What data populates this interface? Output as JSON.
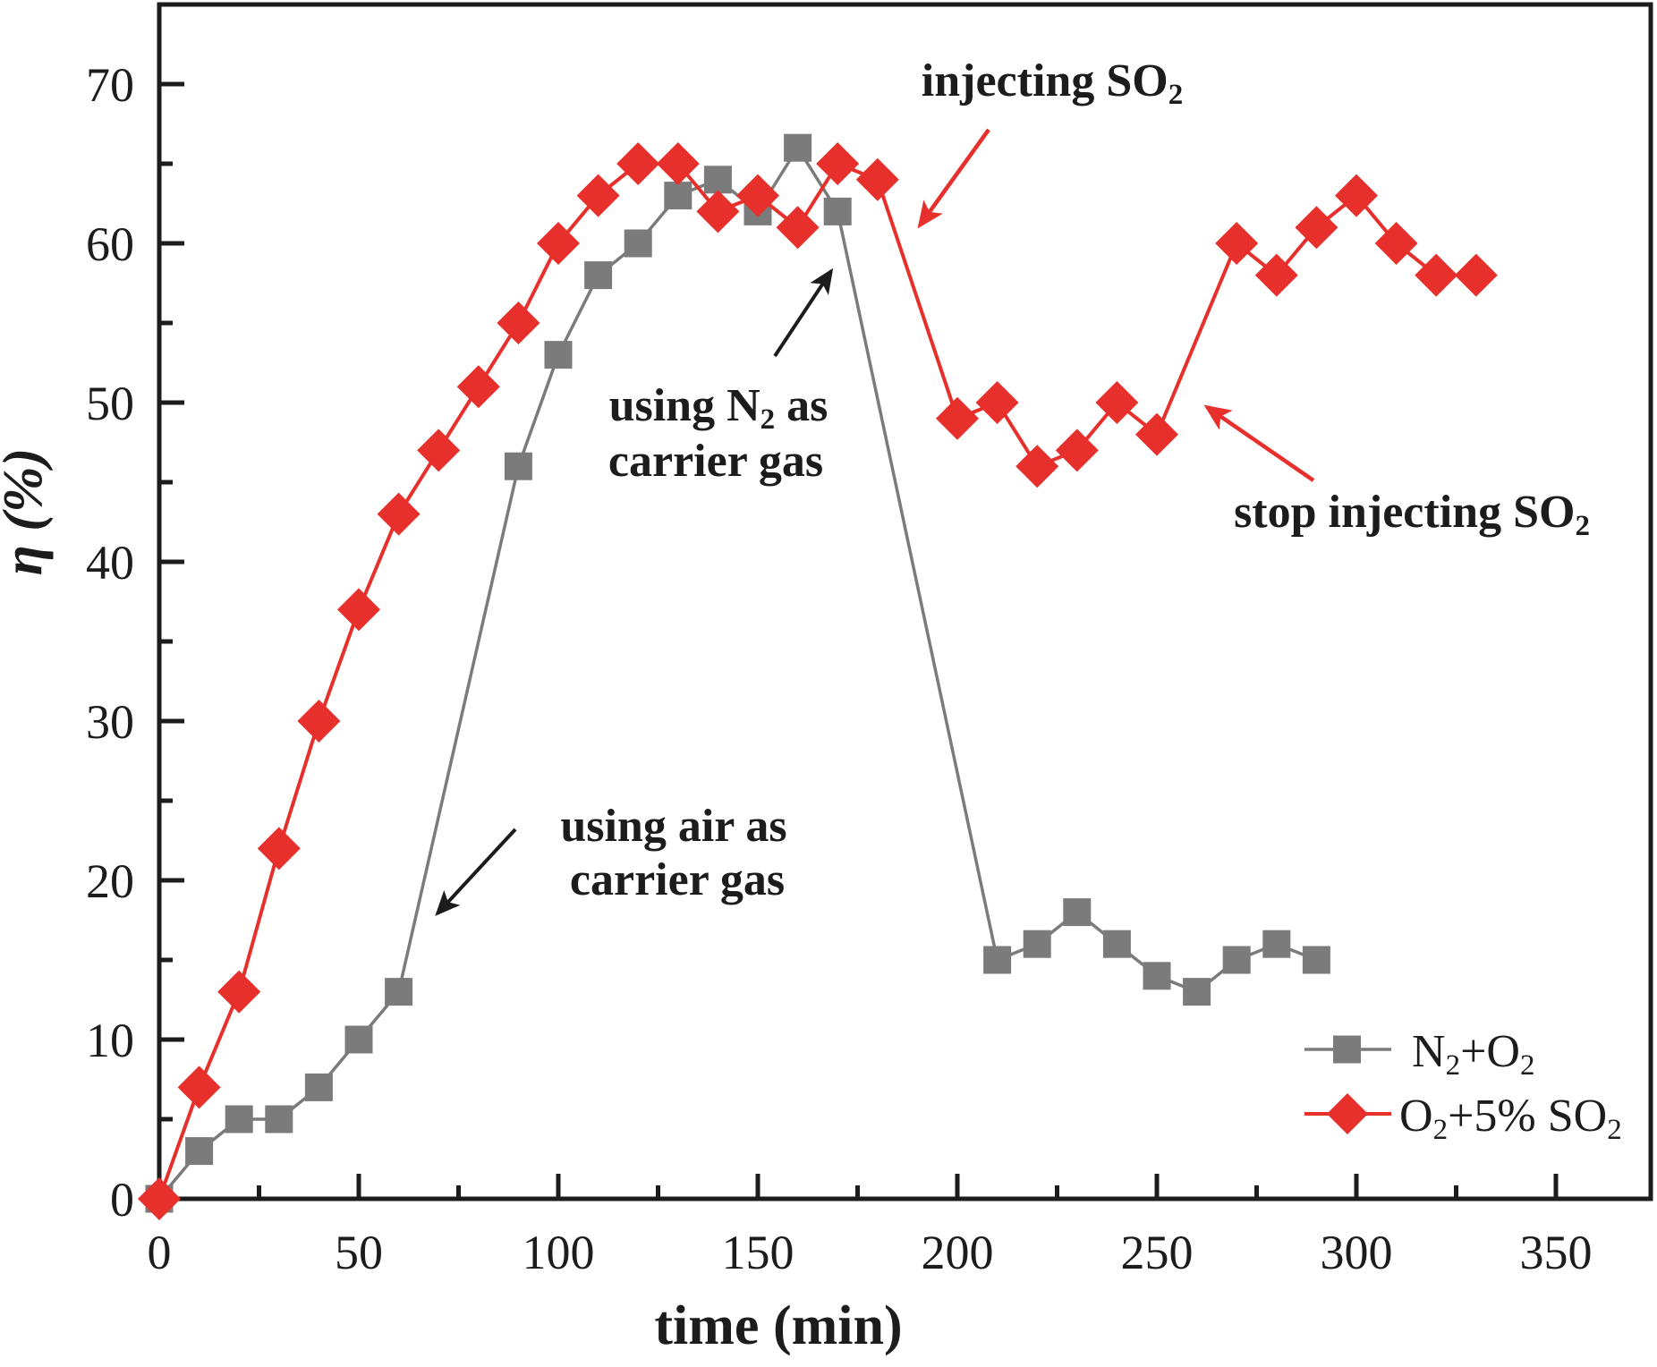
{
  "chart_data": {
    "type": "line",
    "title": "",
    "xlabel": "time (min)",
    "ylabel": "η (%)",
    "xlim": [
      0,
      373
    ],
    "ylim": [
      0,
      75
    ],
    "grid": false,
    "legend_position": "lower-right",
    "x_major_ticks": [
      0,
      50,
      100,
      150,
      200,
      250,
      300,
      350
    ],
    "x_minor_ticks": [
      25,
      75,
      125,
      175,
      225,
      275,
      325
    ],
    "y_major_ticks": [
      0,
      10,
      20,
      30,
      40,
      50,
      60,
      70
    ],
    "y_minor_ticks": [
      5,
      15,
      25,
      35,
      45,
      55,
      65
    ],
    "series": [
      {
        "name": "N₂+O₂",
        "marker": "square",
        "color": "#7b7b7b",
        "points": [
          [
            0,
            0
          ],
          [
            10,
            3
          ],
          [
            20,
            5
          ],
          [
            30,
            5
          ],
          [
            40,
            7
          ],
          [
            50,
            10
          ],
          [
            60,
            13
          ],
          [
            90,
            46
          ],
          [
            100,
            53
          ],
          [
            110,
            58
          ],
          [
            120,
            60
          ],
          [
            130,
            63
          ],
          [
            140,
            64
          ],
          [
            150,
            62
          ],
          [
            160,
            66
          ],
          [
            170,
            62
          ],
          [
            210,
            15
          ],
          [
            220,
            16
          ],
          [
            230,
            18
          ],
          [
            240,
            16
          ],
          [
            250,
            14
          ],
          [
            260,
            13
          ],
          [
            270,
            15
          ],
          [
            280,
            16
          ],
          [
            290,
            15
          ]
        ]
      },
      {
        "name": "O₂+5% SO₂",
        "marker": "diamond",
        "color": "#e72f2b",
        "points": [
          [
            0,
            0
          ],
          [
            10,
            7
          ],
          [
            20,
            13
          ],
          [
            30,
            22
          ],
          [
            40,
            30
          ],
          [
            50,
            37
          ],
          [
            60,
            43
          ],
          [
            70,
            47
          ],
          [
            80,
            51
          ],
          [
            90,
            55
          ],
          [
            100,
            60
          ],
          [
            110,
            63
          ],
          [
            120,
            65
          ],
          [
            130,
            65
          ],
          [
            140,
            62
          ],
          [
            150,
            63
          ],
          [
            160,
            61
          ],
          [
            170,
            65
          ],
          [
            180,
            64
          ],
          [
            200,
            49
          ],
          [
            210,
            50
          ],
          [
            220,
            46
          ],
          [
            230,
            47
          ],
          [
            240,
            50
          ],
          [
            250,
            48
          ],
          [
            270,
            60
          ],
          [
            280,
            58
          ],
          [
            290,
            61
          ],
          [
            300,
            63
          ],
          [
            310,
            60
          ],
          [
            320,
            58
          ],
          [
            330,
            58
          ]
        ]
      }
    ],
    "annotations": {
      "injecting": "injecting SO₂",
      "stop": "stop injecting SO₂",
      "using_n2_line1": "using N₂ as",
      "using_n2_line2": "carrier gas",
      "using_air_line1": "using air as",
      "using_air_line2": "carrier gas"
    },
    "colors": {
      "red": "#e72f2b",
      "gray": "#7b7b7b",
      "axis": "#1c1c1c"
    }
  }
}
